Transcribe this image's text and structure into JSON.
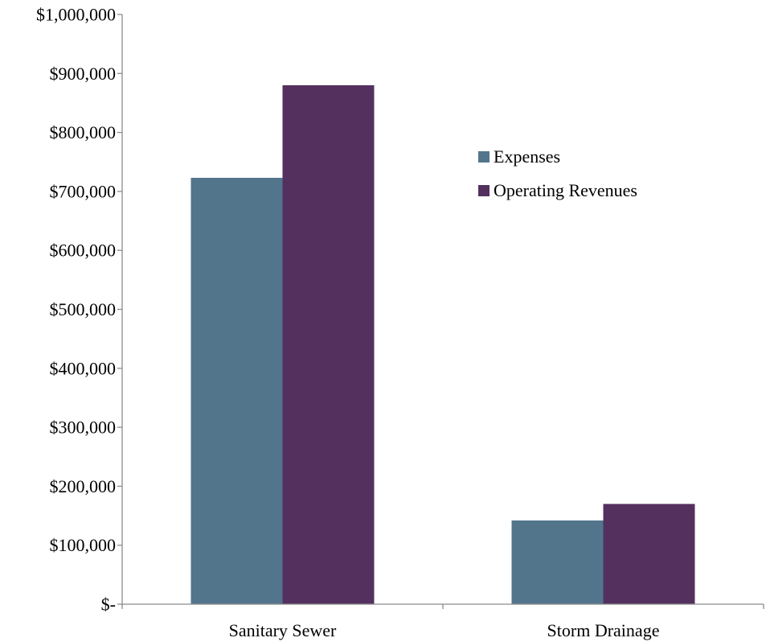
{
  "chart_data": {
    "type": "bar",
    "title": "",
    "xlabel": "",
    "ylabel": "",
    "categories": [
      "Sanitary Sewer",
      "Storm Drainage"
    ],
    "series": [
      {
        "name": "Expenses",
        "color": "#52758c",
        "values": [
          723000,
          142000
        ]
      },
      {
        "name": "Operating Revenues",
        "color": "#54305f",
        "values": [
          880000,
          170000
        ]
      }
    ],
    "ylim": [
      0,
      1000000
    ],
    "yticks": [
      0,
      100000,
      200000,
      300000,
      400000,
      500000,
      600000,
      700000,
      800000,
      900000,
      1000000
    ],
    "ytick_labels": [
      "$-",
      "$100,000",
      "$200,000",
      "$300,000",
      "$400,000",
      "$500,000",
      "$600,000",
      "$700,000",
      "$800,000",
      "$900,000",
      "$1,000,000"
    ],
    "grid": false,
    "legend_position": "top-right"
  }
}
